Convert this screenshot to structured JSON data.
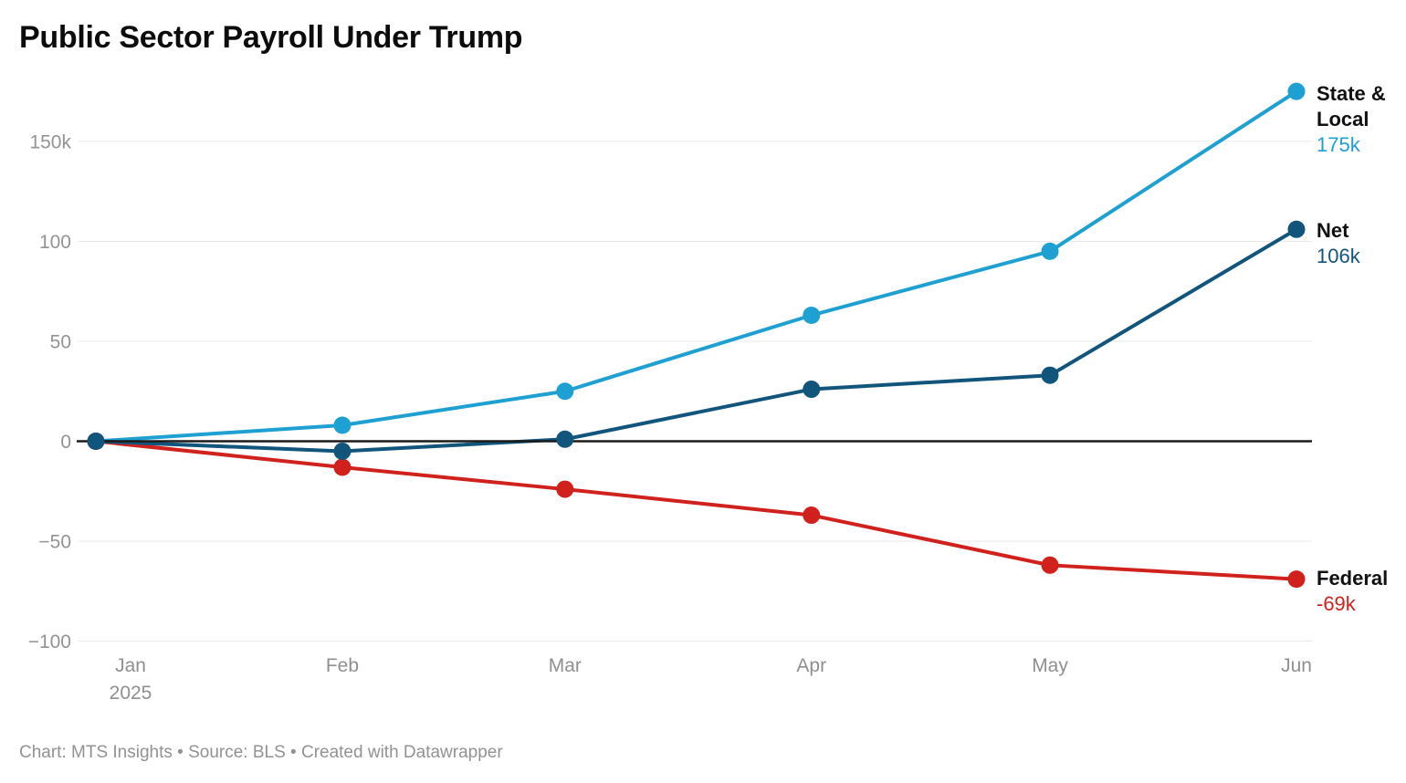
{
  "title": "Public Sector Payroll Under Trump",
  "footer": {
    "text": "Chart: MTS Insights • Source: BLS • Created with Datawrapper"
  },
  "chart_data": {
    "type": "line",
    "title": "Public Sector Payroll Under Trump",
    "categories": [
      "Jan 2025",
      "Feb",
      "Mar",
      "Apr",
      "May",
      "Jun"
    ],
    "x_ticks": [
      {
        "label": "Jan",
        "sublabel": "2025",
        "day": 0
      },
      {
        "label": "Feb",
        "day": 31
      },
      {
        "label": "Mar",
        "day": 59
      },
      {
        "label": "Apr",
        "day": 90
      },
      {
        "label": "May",
        "day": 120
      },
      {
        "label": "Jun",
        "day": 151
      }
    ],
    "y_ticks": [
      {
        "value": -100,
        "label": "−100"
      },
      {
        "value": -50,
        "label": "−50"
      },
      {
        "value": 0,
        "label": "0"
      },
      {
        "value": 50,
        "label": "50"
      },
      {
        "value": 100,
        "label": "100"
      },
      {
        "value": 150,
        "label": "150k"
      }
    ],
    "ylim": [
      -100,
      180
    ],
    "baseline": 0,
    "grid": true,
    "legend_position": "end-of-line-labels",
    "colors": {
      "state_local": "#1fa0d2",
      "federal": "#d0211d",
      "net": "#12557c",
      "axis_text": "#939393",
      "gridline": "#e8e8e8",
      "zero_line": "#1a1a1a"
    },
    "series": [
      {
        "name": "State & Local",
        "color": "#1fa0d2",
        "values": [
          0,
          8,
          25,
          63,
          95,
          175
        ],
        "label_line1": "State &",
        "label_line2": "Local",
        "end_value": "175k"
      },
      {
        "name": "Federal",
        "color": "#d0211d",
        "values": [
          0,
          -13,
          -24,
          -37,
          -62,
          -69
        ],
        "label_line1": "Federal",
        "end_value": "-69k"
      },
      {
        "name": "Net",
        "color": "#12557c",
        "values": [
          0,
          -5,
          1,
          26,
          33,
          106
        ],
        "label_line1": "Net",
        "end_value": "106k"
      }
    ]
  }
}
